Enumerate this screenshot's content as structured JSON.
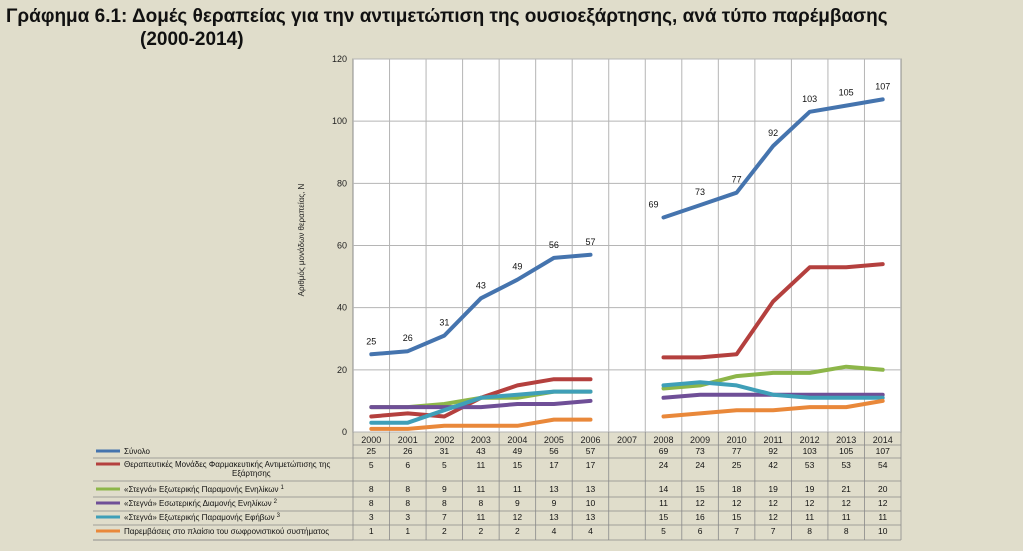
{
  "title_line1": "Γράφημα 6.1: Δομές θεραπείας για την αντιμετώπιση της ουσιοεξάρτησης, ανά τύπο παρέμβασης",
  "title_line2": "(2000-2014)",
  "chart_data": {
    "type": "line",
    "title": "Γράφημα 6.1: Δομές θεραπείας για την αντιμετώπιση της ουσιοεξάρτησης, ανά τύπο παρέμβασης (2000-2014)",
    "ylabel": "Αριθμός μονάδων θεραπείας, N",
    "xlabel": "",
    "ylim": [
      0,
      120
    ],
    "yticks": [
      0,
      20,
      40,
      60,
      80,
      100,
      120
    ],
    "categories": [
      "2000",
      "2001",
      "2002",
      "2003",
      "2004",
      "2005",
      "2006",
      "2007",
      "2008",
      "2009",
      "2010",
      "2011",
      "2012",
      "2013",
      "2014"
    ],
    "series": [
      {
        "name": "Σύνολο",
        "sup": "",
        "color": "#4574ae",
        "values": [
          25,
          26,
          31,
          43,
          49,
          56,
          57,
          null,
          69,
          73,
          77,
          92,
          103,
          105,
          107
        ],
        "labeled": true
      },
      {
        "name": "Θεραπευτικές Μονάδες Φαρμακευτικής Αντιμετώπισης της",
        "name2": "Εξάρτησης",
        "sup": "",
        "color": "#b4403e",
        "values": [
          5,
          6,
          5,
          11,
          15,
          17,
          17,
          null,
          24,
          24,
          25,
          42,
          53,
          53,
          54
        ]
      },
      {
        "name": "«Στεγνά» Εξωτερικής Παραμονής Ενηλίκων",
        "sup": "1",
        "color": "#8db649",
        "values": [
          8,
          8,
          9,
          11,
          11,
          13,
          13,
          null,
          14,
          15,
          18,
          19,
          19,
          21,
          20
        ]
      },
      {
        "name": "«Στεγνά» Εσωτερικής Διαμονής Ενηλίκων",
        "sup": "2",
        "color": "#6f4f97",
        "values": [
          8,
          8,
          8,
          8,
          9,
          9,
          10,
          null,
          11,
          12,
          12,
          12,
          12,
          12,
          12
        ]
      },
      {
        "name": "«Στεγνά» Εξωτερικής Παραμονής Εφήβων",
        "sup": "3",
        "color": "#3f9fb8",
        "values": [
          3,
          3,
          7,
          11,
          12,
          13,
          13,
          null,
          15,
          16,
          15,
          12,
          11,
          11,
          11
        ]
      },
      {
        "name": "Παρεμβάσεις στο πλαίσιο του σωφρονιστικού συστήματος",
        "sup": "",
        "color": "#e9883a",
        "values": [
          1,
          1,
          2,
          2,
          2,
          4,
          4,
          null,
          5,
          6,
          7,
          7,
          8,
          8,
          10
        ]
      }
    ]
  }
}
